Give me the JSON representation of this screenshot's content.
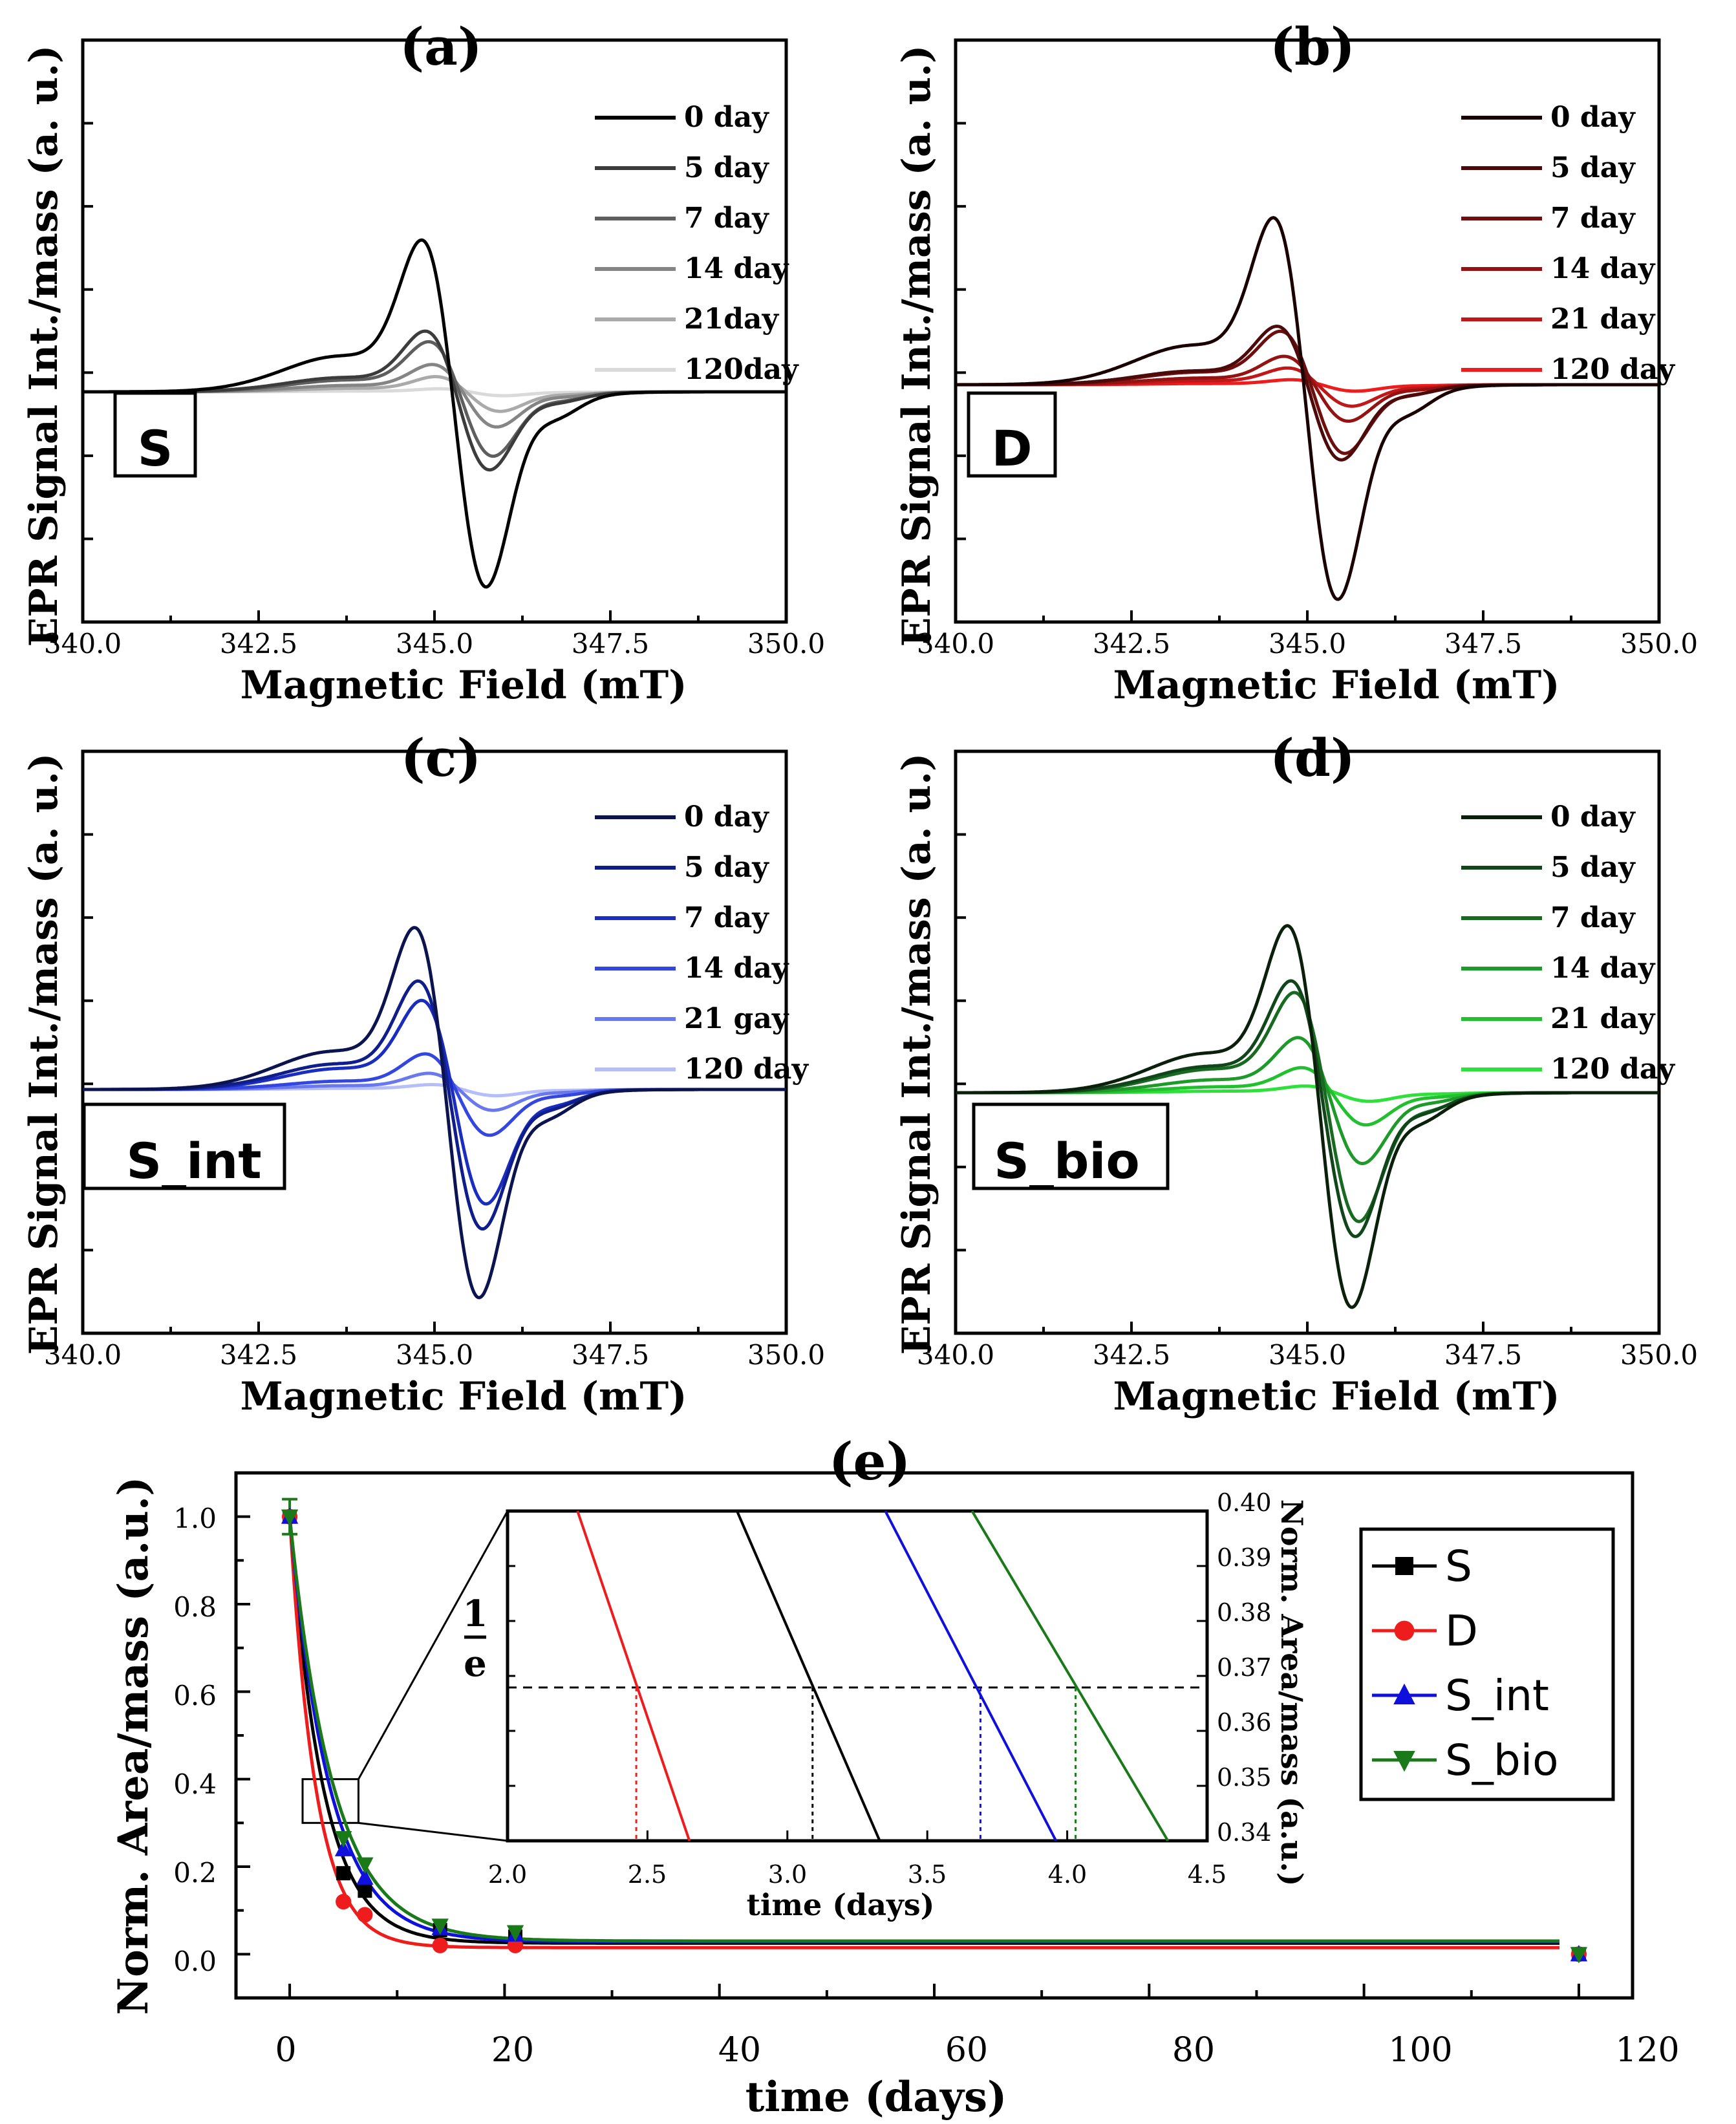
{
  "chart_data": [
    {
      "type": "line",
      "panel": "(a)",
      "sample": "S",
      "xlabel": "Magnetic Field (mT)",
      "ylabel": "EPR Signal Int./mass (a. u.)",
      "xlim": [
        340.0,
        350.0
      ],
      "xticks": [
        "340.0",
        "342.5",
        "345.0",
        "347.5",
        "350.0"
      ],
      "center": 345.3,
      "series": [
        {
          "name": "0 day",
          "color": "#000000",
          "amp": 1.0
        },
        {
          "name": "5 day",
          "color": "#3c3c3c",
          "amp": 0.4
        },
        {
          "name": "7 day",
          "color": "#5e5e5e",
          "amp": 0.33
        },
        {
          "name": "14 day",
          "color": "#858585",
          "amp": 0.18
        },
        {
          "name": "21day",
          "color": "#aaaaaa",
          "amp": 0.1
        },
        {
          "name": "120day",
          "color": "#dadada",
          "amp": 0.02
        }
      ]
    },
    {
      "type": "line",
      "panel": "(b)",
      "sample": "D",
      "xlabel": "Magnetic Field (mT)",
      "ylabel": "EPR Signal Int./mass (a. u.)",
      "xlim": [
        340.0,
        350.0
      ],
      "xticks": [
        "340.0",
        "342.5",
        "345.0",
        "347.5",
        "350.0"
      ],
      "center": 345.0,
      "series": [
        {
          "name": "0 day",
          "color": "#1a0000",
          "amp": 1.0
        },
        {
          "name": "5 day",
          "color": "#4d0a0a",
          "amp": 0.35
        },
        {
          "name": "7 day",
          "color": "#6e0e0e",
          "amp": 0.32
        },
        {
          "name": "14 day",
          "color": "#951212",
          "amp": 0.17
        },
        {
          "name": "21 day",
          "color": "#c01818",
          "amp": 0.1
        },
        {
          "name": "120 day",
          "color": "#ee1c1c",
          "amp": 0.03
        }
      ]
    },
    {
      "type": "line",
      "panel": "(c)",
      "sample": "S_int",
      "xlabel": "Magnetic Field (mT)",
      "ylabel": "EPR Signal Int./mass (a. u.)",
      "xlim": [
        340.0,
        350.0
      ],
      "xticks": [
        "340.0",
        "342.5",
        "345.0",
        "347.5",
        "350.0"
      ],
      "center": 345.2,
      "series": [
        {
          "name": "0 day",
          "color": "#0c1450",
          "amp": 1.0
        },
        {
          "name": "5 day",
          "color": "#0f1e8a",
          "amp": 0.67
        },
        {
          "name": "7 day",
          "color": "#1a2dc0",
          "amp": 0.55
        },
        {
          "name": "14 day",
          "color": "#3446e0",
          "amp": 0.22
        },
        {
          "name": "21 gay",
          "color": "#6a78ee",
          "amp": 0.1
        },
        {
          "name": "120 day",
          "color": "#b6befa",
          "amp": 0.03
        }
      ]
    },
    {
      "type": "line",
      "panel": "(d)",
      "sample": "S_bio",
      "xlabel": "Magnetic Field (mT)",
      "ylabel": "EPR Signal Int./mass (a. u.)",
      "xlim": [
        340.0,
        350.0
      ],
      "xticks": [
        "340.0",
        "342.5",
        "345.0",
        "347.5",
        "350.0"
      ],
      "center": 345.2,
      "series": [
        {
          "name": "0 day",
          "color": "#0a200a",
          "amp": 1.0
        },
        {
          "name": "5 day",
          "color": "#11461a",
          "amp": 0.67
        },
        {
          "name": "7 day",
          "color": "#176a20",
          "amp": 0.6
        },
        {
          "name": "14 day",
          "color": "#1e9a2a",
          "amp": 0.33
        },
        {
          "name": "21 day",
          "color": "#22c02f",
          "amp": 0.15
        },
        {
          "name": "120 day",
          "color": "#2ee03a",
          "amp": 0.04
        }
      ]
    },
    {
      "type": "scatter",
      "panel": "(e)",
      "xlabel": "time (days)",
      "ylabel": "Norm. Area/mass (a.u.)",
      "xlim": [
        -5,
        125
      ],
      "ylim": [
        -0.1,
        1.1
      ],
      "xticks": [
        0,
        20,
        40,
        60,
        80,
        100,
        120
      ],
      "yticks": [
        "0.0",
        "0.2",
        "0.4",
        "0.6",
        "0.8",
        "1.0"
      ],
      "x": [
        0,
        5,
        7,
        14,
        21,
        120
      ],
      "series": [
        {
          "name": "S",
          "color": "#000000",
          "marker": "square",
          "values": [
            1.0,
            0.185,
            0.145,
            0.055,
            0.04,
            0.0
          ],
          "tau": 3.1,
          "offset": 0.025
        },
        {
          "name": "D",
          "color": "#ee1c1c",
          "marker": "circle",
          "values": [
            1.0,
            0.12,
            0.09,
            0.02,
            0.02,
            0.0
          ],
          "tau": 2.45,
          "offset": 0.015
        },
        {
          "name": "S_int",
          "color": "#1010dd",
          "marker": "triangle-up",
          "values": [
            1.0,
            0.24,
            0.175,
            0.06,
            0.045,
            0.0
          ],
          "tau": 3.7,
          "offset": 0.028
        },
        {
          "name": "S_bio",
          "color": "#1a7a1a",
          "marker": "triangle-down",
          "values": [
            1.0,
            0.265,
            0.205,
            0.065,
            0.05,
            0.0
          ],
          "tau": 4.05,
          "offset": 0.03
        }
      ],
      "inset": {
        "xlabel": "time (days)",
        "ylabel": "Norm. Area/mass (a.u.)",
        "xlim": [
          2.0,
          4.5
        ],
        "ylim": [
          0.34,
          0.4
        ],
        "xticks": [
          "2.0",
          "2.5",
          "3.0",
          "3.5",
          "4.0",
          "4.5"
        ],
        "yticks": [
          "0.34",
          "0.35",
          "0.36",
          "0.37",
          "0.38",
          "0.39",
          "0.40"
        ],
        "one_over_e": 0.3679,
        "marker_label_num": "1",
        "marker_label_den": "e",
        "lines": [
          {
            "name": "D",
            "x": [
              2.25,
              2.65
            ],
            "y": [
              0.4,
              0.34
            ],
            "cross": 2.46
          },
          {
            "name": "S",
            "x": [
              2.82,
              3.33
            ],
            "y": [
              0.4,
              0.34
            ],
            "cross": 3.09
          },
          {
            "name": "S_int",
            "x": [
              3.35,
              3.96
            ],
            "y": [
              0.4,
              0.34
            ],
            "cross": 3.69
          },
          {
            "name": "S_bio",
            "x": [
              3.66,
              4.36
            ],
            "y": [
              0.4,
              0.34
            ],
            "cross": 4.03
          }
        ]
      }
    }
  ]
}
